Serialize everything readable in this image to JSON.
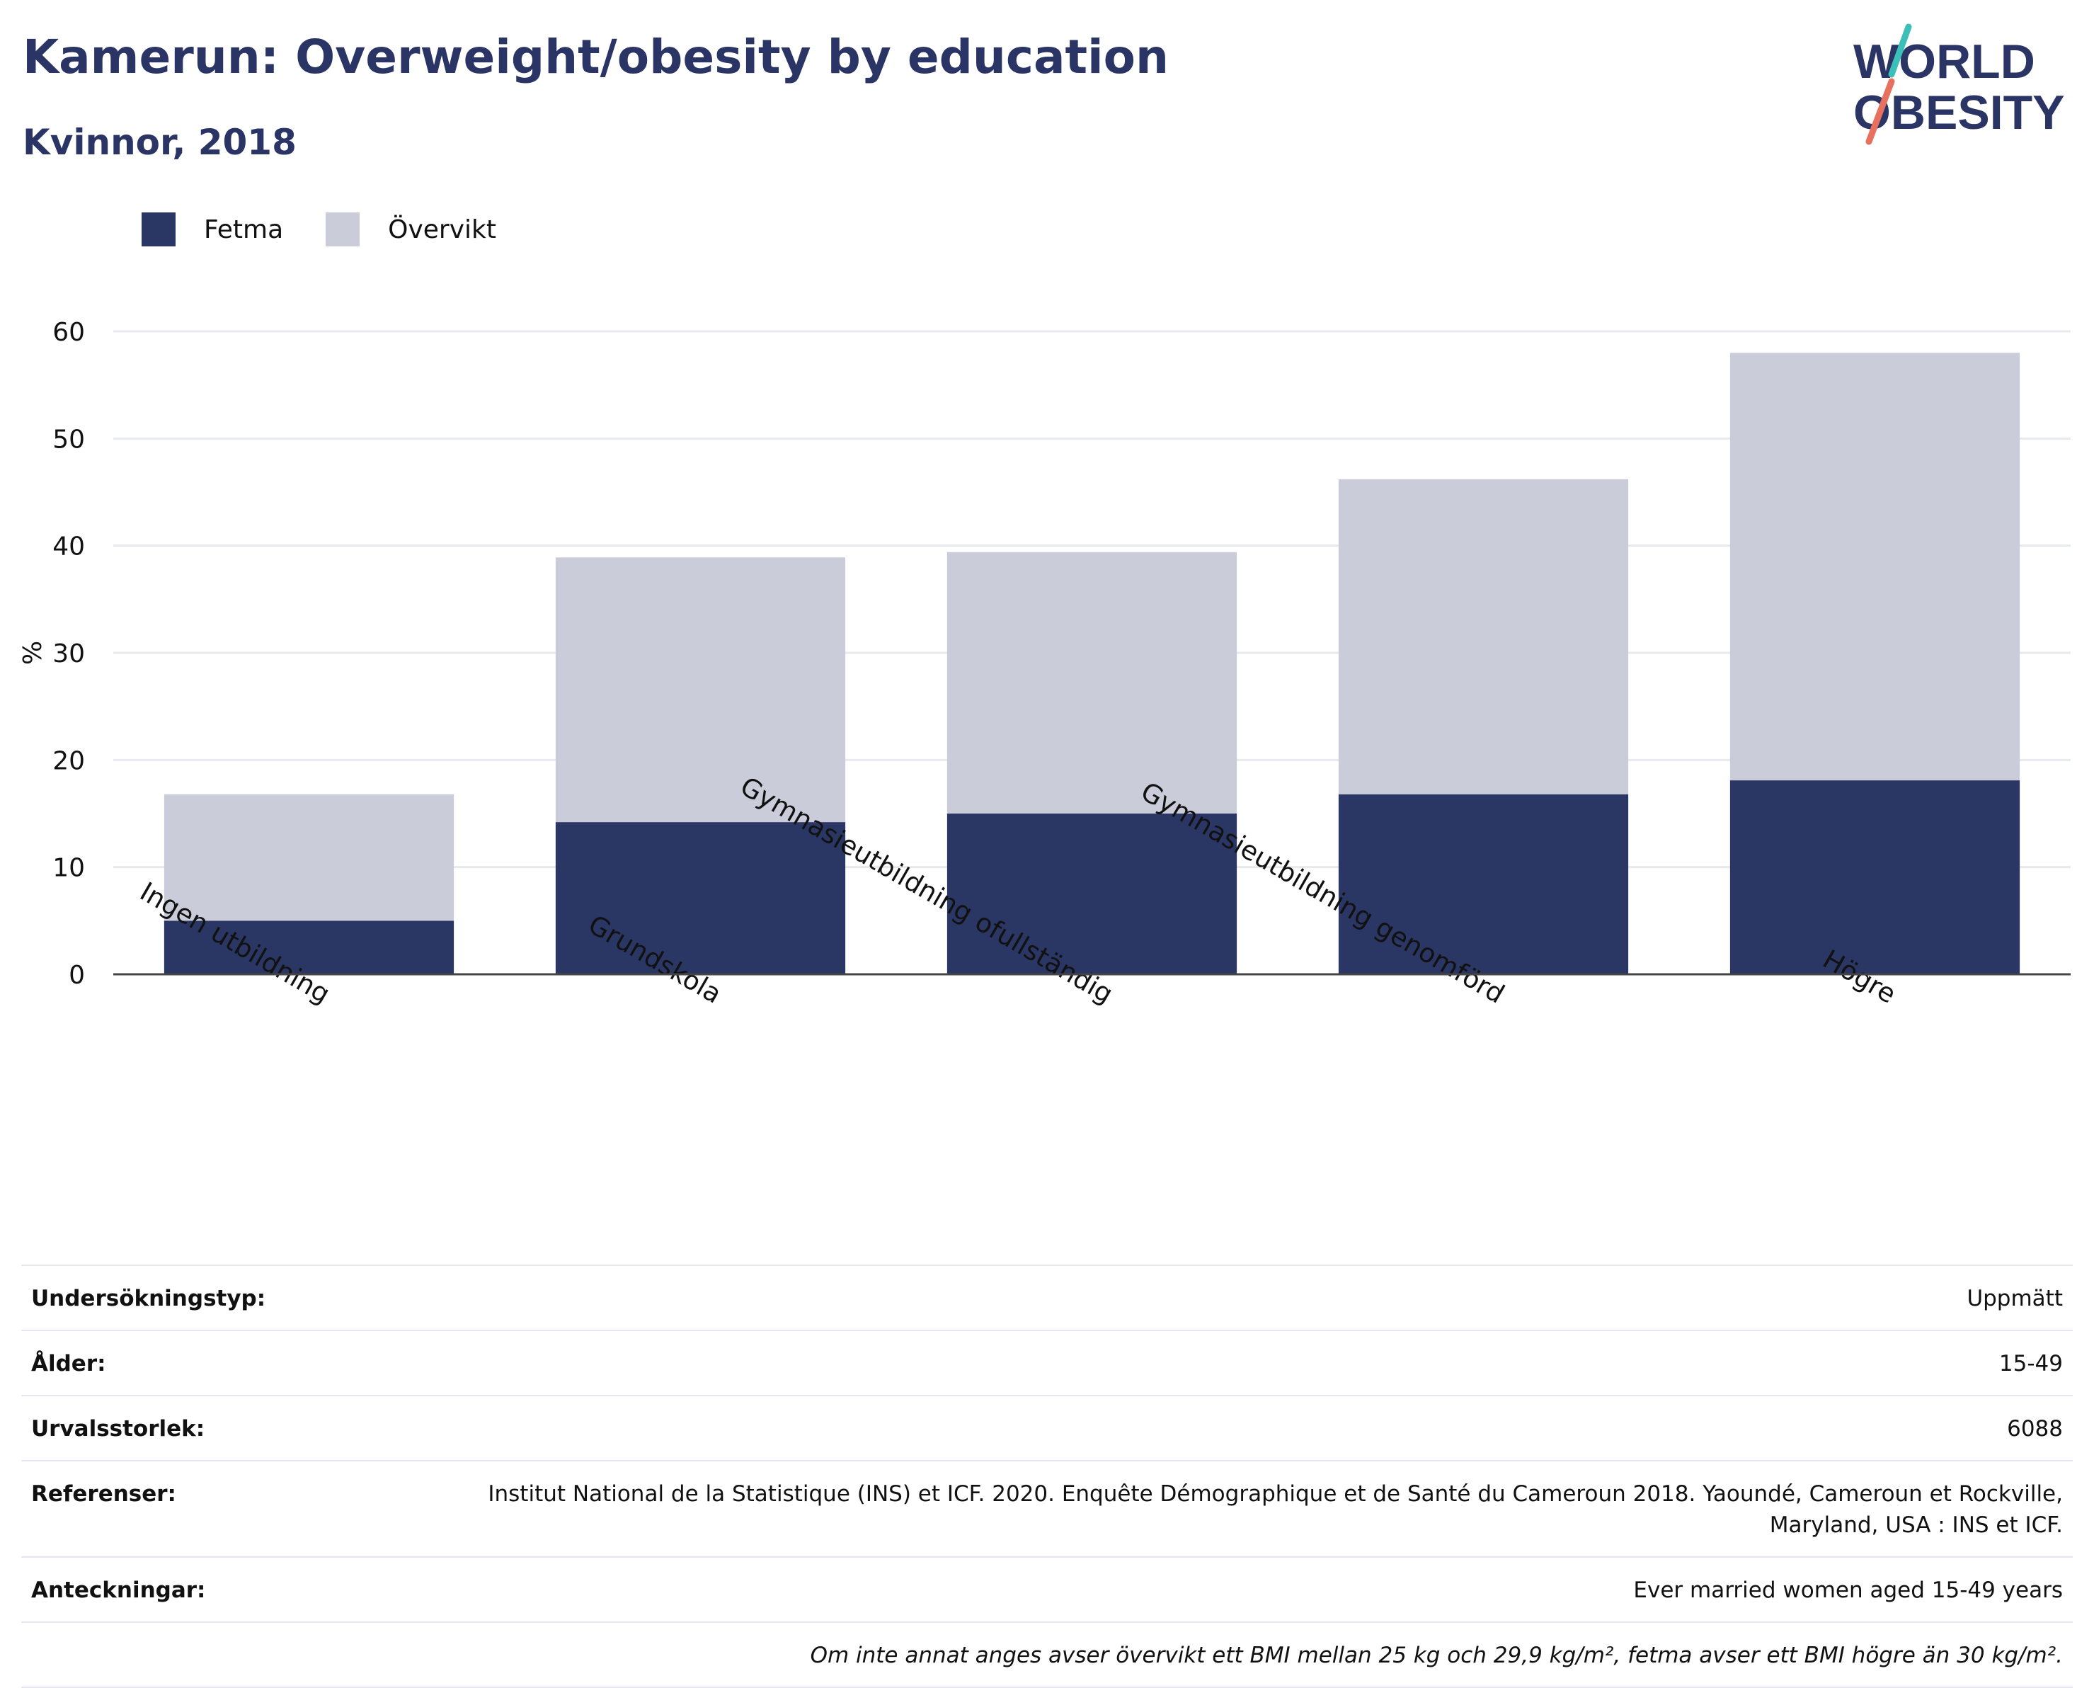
{
  "header": {
    "title": "Kamerun: Overweight/obesity by education",
    "subtitle": "Kvinnor, 2018"
  },
  "logo": {
    "line1": "WORLD",
    "line2": "OBESITY",
    "icon": "world-obesity-logo"
  },
  "colors": {
    "title": "#2a3565",
    "fetma": "#2a3663",
    "overvikt": "#cacdd9",
    "logo_teal": "#3bbfb8",
    "logo_coral": "#e8705e"
  },
  "chart_data": {
    "type": "bar",
    "stacked": true,
    "categories": [
      "Ingen utbildning",
      "Grundskola",
      "Gymnasieutbildning ofullständig",
      "Gymnasieutbildning genomförd",
      "Högre"
    ],
    "series": [
      {
        "name": "Fetma",
        "values": [
          5.0,
          14.2,
          15.0,
          16.8,
          18.1
        ]
      },
      {
        "name": "Övervikt",
        "values": [
          11.8,
          24.7,
          24.4,
          29.4,
          39.9
        ]
      }
    ],
    "ylabel": "%",
    "ylim": [
      0,
      60
    ],
    "yticks": [
      0,
      10,
      20,
      30,
      40,
      50,
      60
    ],
    "grid": true,
    "legend": "top-left"
  },
  "meta": [
    {
      "key": "Undersökningstyp:",
      "value": "Uppmätt"
    },
    {
      "key": "Ålder:",
      "value": "15-49"
    },
    {
      "key": "Urvalsstorlek:",
      "value": "6088"
    },
    {
      "key": "Referenser:",
      "value": "Institut National de la Statistique (INS) et ICF. 2020. Enquête Démographique et de Santé du Cameroun 2018. Yaoundé, Cameroun et Rockville, Maryland, USA : INS et ICF."
    },
    {
      "key": "Anteckningar:",
      "value": "Ever married women aged 15-49 years"
    }
  ],
  "note": "Om inte annat anges avser övervikt ett BMI mellan 25 kg och 29,9 kg/m², fetma avser ett BMI högre än 30 kg/m²."
}
